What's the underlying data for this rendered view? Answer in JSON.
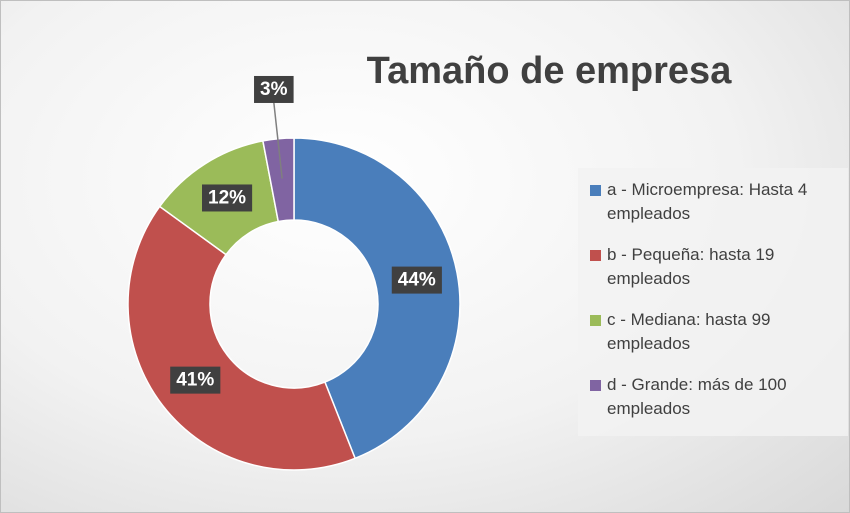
{
  "chart_data": {
    "type": "pie",
    "donut": true,
    "title": "Tamaño de empresa",
    "categories": [
      "a - Microempresa: Hasta 4 empleados",
      "b - Pequeña: hasta 19 empleados",
      "c - Mediana: hasta 99 empleados",
      "d - Grande: más de 100 empleados"
    ],
    "values": [
      44,
      41,
      12,
      3
    ],
    "value_labels": [
      "44%",
      "41%",
      "12%",
      "3%"
    ],
    "colors": [
      "#4a7ebb",
      "#c0504d",
      "#9bbb59",
      "#8064a2"
    ],
    "legend": "right"
  }
}
